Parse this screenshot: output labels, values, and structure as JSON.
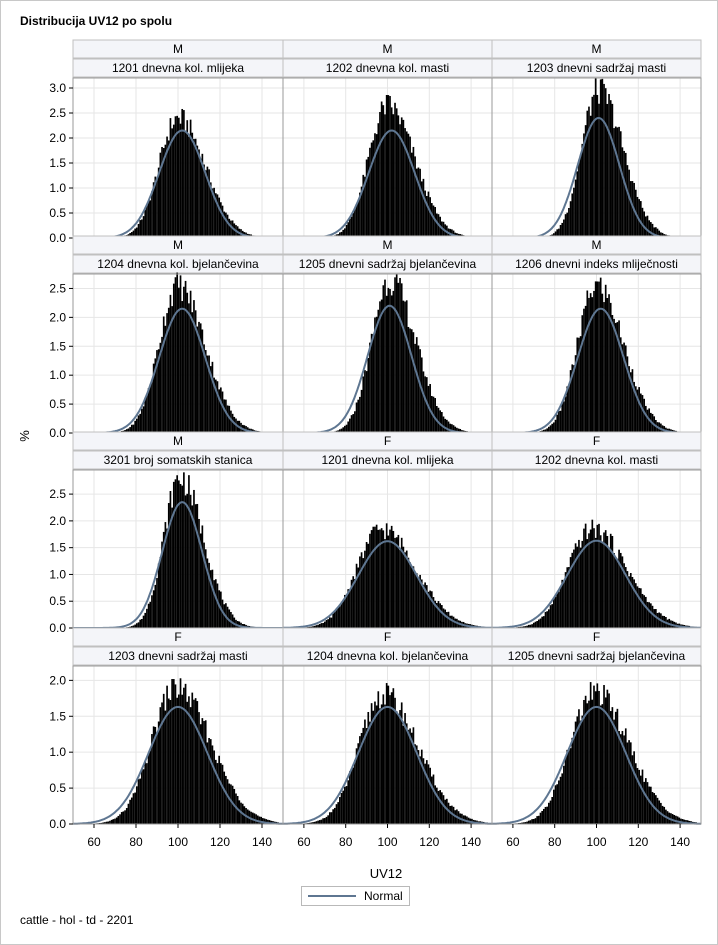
{
  "title": "Distribucija UV12 po spolu",
  "footnote": "cattle - hol - td - 2201",
  "legend": {
    "label": "Normal",
    "line_color": "#5e7691"
  },
  "colors": {
    "bar": "#000000",
    "normal_curve": "#5e7691",
    "header_bg": "#f4f5f9",
    "grid": "#e6e6e6"
  },
  "chart_data": {
    "type": "histogram",
    "xlabel": "UV12",
    "ylabel": "%",
    "xlim": [
      50,
      150
    ],
    "x_ticks": [
      60,
      80,
      100,
      120,
      140
    ],
    "grid": true,
    "legend_position": "bottom-center",
    "rows": [
      {
        "ylim": [
          0,
          3.2
        ],
        "y_ticks": [
          "0.0",
          "0.5",
          "1.0",
          "1.5",
          "2.0",
          "2.5",
          "3.0"
        ],
        "y_values": [
          0,
          0.5,
          1.0,
          1.5,
          2.0,
          2.5,
          3.0
        ]
      },
      {
        "ylim": [
          0,
          2.75
        ],
        "y_ticks": [
          "0.0",
          "0.5",
          "1.0",
          "1.5",
          "2.0",
          "2.5"
        ],
        "y_values": [
          0,
          0.5,
          1.0,
          1.5,
          2.0,
          2.5
        ]
      },
      {
        "ylim": [
          0,
          2.95
        ],
        "y_ticks": [
          "0.0",
          "0.5",
          "1.0",
          "1.5",
          "2.0",
          "2.5"
        ],
        "y_values": [
          0,
          0.5,
          1.0,
          1.5,
          2.0,
          2.5
        ]
      },
      {
        "ylim": [
          0,
          2.2
        ],
        "y_ticks": [
          "0.0",
          "0.5",
          "1.0",
          "1.5",
          "2.0"
        ],
        "y_values": [
          0,
          0.5,
          1.0,
          1.5,
          2.0
        ]
      }
    ],
    "panels": [
      {
        "sex": "M",
        "trait": "1201 dnevna kol. mlijeka",
        "normal_mean": 102,
        "normal_sd": 11,
        "hist_peak": 2.4,
        "hist_mode": 100,
        "curve_peak": 2.15
      },
      {
        "sex": "M",
        "trait": "1202 dnevna kol. masti",
        "normal_mean": 102,
        "normal_sd": 11,
        "hist_peak": 2.65,
        "hist_mode": 100,
        "curve_peak": 2.15
      },
      {
        "sex": "M",
        "trait": "1203 dnevni sadržaj masti",
        "normal_mean": 101,
        "normal_sd": 10,
        "hist_peak": 2.95,
        "hist_mode": 101,
        "curve_peak": 2.4
      },
      {
        "sex": "M",
        "trait": "1204 dnevna kol. bjelančevina",
        "normal_mean": 102,
        "normal_sd": 11,
        "hist_peak": 2.55,
        "hist_mode": 100,
        "curve_peak": 2.15
      },
      {
        "sex": "M",
        "trait": "1205 dnevni sadržaj bjelančevina",
        "normal_mean": 101,
        "normal_sd": 10.5,
        "hist_peak": 2.65,
        "hist_mode": 101,
        "curve_peak": 2.2
      },
      {
        "sex": "M",
        "trait": "1206 dnevni indeks mliječnosti",
        "normal_mean": 102,
        "normal_sd": 11,
        "hist_peak": 2.55,
        "hist_mode": 100,
        "curve_peak": 2.15
      },
      {
        "sex": "M",
        "trait": "3201 broj somatskih stanica",
        "normal_mean": 102,
        "normal_sd": 9.5,
        "hist_peak": 2.8,
        "hist_mode": 101,
        "curve_peak": 2.35
      },
      {
        "sex": "F",
        "trait": "1201 dnevna kol. mlijeka",
        "normal_mean": 100,
        "normal_sd": 14,
        "hist_peak": 1.85,
        "hist_mode": 97,
        "curve_peak": 1.62
      },
      {
        "sex": "F",
        "trait": "1202 dnevna kol. masti",
        "normal_mean": 100,
        "normal_sd": 14,
        "hist_peak": 1.85,
        "hist_mode": 98,
        "curve_peak": 1.63
      },
      {
        "sex": "F",
        "trait": "1203 dnevni sadržaj masti",
        "normal_mean": 100,
        "normal_sd": 14,
        "hist_peak": 1.9,
        "hist_mode": 99,
        "curve_peak": 1.63
      },
      {
        "sex": "F",
        "trait": "1204 dnevna kol. bjelančevina",
        "normal_mean": 100,
        "normal_sd": 14,
        "hist_peak": 1.8,
        "hist_mode": 98,
        "curve_peak": 1.63
      },
      {
        "sex": "F",
        "trait": "1205 dnevni sadržaj bjelančevina",
        "normal_mean": 100,
        "normal_sd": 14,
        "hist_peak": 1.83,
        "hist_mode": 99,
        "curve_peak": 1.63
      }
    ]
  }
}
